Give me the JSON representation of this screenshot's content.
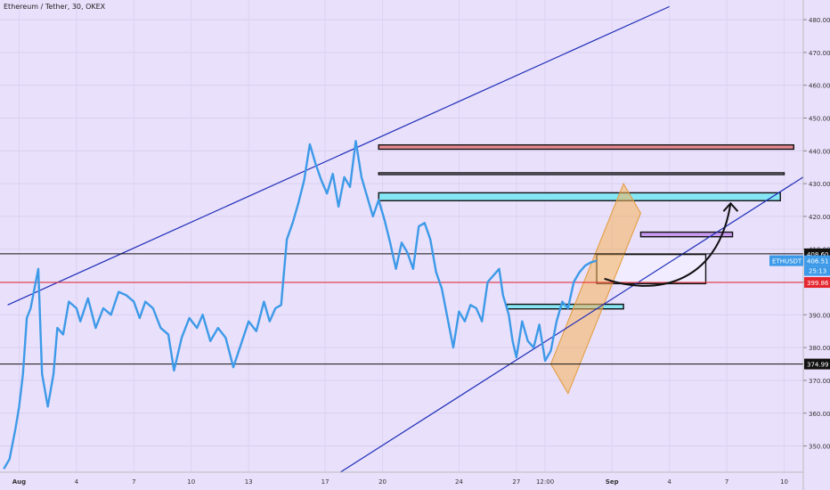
{
  "title": "Ethereum / Tether, 30, OKEX",
  "colors": {
    "bg": "#e9e0fb",
    "price_line": "#3d9ae8",
    "channel": "#1f2fb8",
    "red_line": "#e5262f",
    "black_line": "#111111"
  },
  "chart_data": {
    "type": "line",
    "ylim": [
      342,
      486
    ],
    "y_ticks": [
      350,
      360,
      370,
      380,
      390,
      400,
      410,
      420,
      430,
      440,
      450,
      460,
      470,
      480
    ],
    "y_tick_labels": [
      "350.00",
      "360.00",
      "370.00",
      "380.00",
      "390.00",
      "400.00",
      "410.00",
      "420.00",
      "430.00",
      "440.00",
      "450.00",
      "460.00",
      "470.00",
      "480.00"
    ],
    "x_ticks": [
      {
        "label": "Aug",
        "t": 0
      },
      {
        "label": "4",
        "t": 3
      },
      {
        "label": "7",
        "t": 6
      },
      {
        "label": "10",
        "t": 9
      },
      {
        "label": "13",
        "t": 12
      },
      {
        "label": "17",
        "t": 16
      },
      {
        "label": "20",
        "t": 19
      },
      {
        "label": "24",
        "t": 23
      },
      {
        "label": "27",
        "t": 26
      },
      {
        "label": "12:00",
        "t": 27.5
      },
      {
        "label": "Sep",
        "t": 31
      },
      {
        "label": "4",
        "t": 34
      },
      {
        "label": "7",
        "t": 37
      },
      {
        "label": "10",
        "t": 40
      }
    ],
    "xlim": [
      -1,
      41
    ],
    "series": [
      {
        "name": "",
        "values": [
          [
            -0.8,
            343
          ],
          [
            -0.5,
            346
          ],
          [
            -0.2,
            355
          ],
          [
            0,
            362
          ],
          [
            0.2,
            372
          ],
          [
            0.4,
            389
          ],
          [
            0.6,
            392
          ],
          [
            0.8,
            398
          ],
          [
            1,
            404
          ],
          [
            1.2,
            372
          ],
          [
            1.5,
            362
          ],
          [
            1.8,
            372
          ],
          [
            2,
            386
          ],
          [
            2.3,
            384
          ],
          [
            2.6,
            394
          ],
          [
            3,
            392
          ],
          [
            3.2,
            388
          ],
          [
            3.6,
            395
          ],
          [
            4,
            386
          ],
          [
            4.4,
            392
          ],
          [
            4.8,
            390
          ],
          [
            5.2,
            397
          ],
          [
            5.6,
            396
          ],
          [
            6,
            394
          ],
          [
            6.3,
            389
          ],
          [
            6.6,
            394
          ],
          [
            7,
            392
          ],
          [
            7.4,
            386
          ],
          [
            7.8,
            384
          ],
          [
            8.1,
            373
          ],
          [
            8.5,
            383
          ],
          [
            8.9,
            389
          ],
          [
            9.3,
            386
          ],
          [
            9.6,
            390
          ],
          [
            10,
            382
          ],
          [
            10.4,
            386
          ],
          [
            10.8,
            383
          ],
          [
            11.2,
            374
          ],
          [
            11.6,
            381
          ],
          [
            12,
            388
          ],
          [
            12.4,
            385
          ],
          [
            12.8,
            394
          ],
          [
            13.1,
            388
          ],
          [
            13.4,
            392
          ],
          [
            13.7,
            393
          ],
          [
            14,
            413
          ],
          [
            14.3,
            418
          ],
          [
            14.6,
            424
          ],
          [
            14.9,
            431
          ],
          [
            15.2,
            442
          ],
          [
            15.5,
            436
          ],
          [
            15.8,
            431
          ],
          [
            16.1,
            427
          ],
          [
            16.4,
            433
          ],
          [
            16.7,
            423
          ],
          [
            17,
            432
          ],
          [
            17.3,
            429
          ],
          [
            17.6,
            443
          ],
          [
            17.9,
            432
          ],
          [
            18.2,
            426
          ],
          [
            18.5,
            420
          ],
          [
            18.8,
            425
          ],
          [
            19.1,
            419
          ],
          [
            19.4,
            412
          ],
          [
            19.7,
            404
          ],
          [
            20,
            412
          ],
          [
            20.3,
            409
          ],
          [
            20.6,
            404
          ],
          [
            20.9,
            417
          ],
          [
            21.2,
            418
          ],
          [
            21.5,
            413
          ],
          [
            21.8,
            403
          ],
          [
            22.1,
            398
          ],
          [
            22.4,
            389
          ],
          [
            22.7,
            380
          ],
          [
            23,
            391
          ],
          [
            23.3,
            388
          ],
          [
            23.6,
            393
          ],
          [
            23.9,
            392
          ],
          [
            24.2,
            388
          ],
          [
            24.5,
            400
          ],
          [
            24.8,
            402
          ],
          [
            25.1,
            404
          ],
          [
            25.3,
            396
          ],
          [
            25.6,
            390
          ],
          [
            25.8,
            382
          ],
          [
            26,
            377
          ],
          [
            26.3,
            388
          ],
          [
            26.6,
            382
          ],
          [
            26.9,
            380
          ],
          [
            27.2,
            387
          ],
          [
            27.5,
            376
          ],
          [
            27.8,
            379
          ],
          [
            28.1,
            388
          ],
          [
            28.4,
            394
          ],
          [
            28.7,
            392
          ],
          [
            29,
            400
          ],
          [
            29.3,
            403
          ],
          [
            29.6,
            405
          ],
          [
            29.9,
            406
          ],
          [
            30.2,
            406.5
          ]
        ]
      }
    ],
    "h_lines": [
      {
        "y": 408.6,
        "label": "408.60",
        "color": "#111111"
      },
      {
        "y": 399.86,
        "label": "399.86",
        "color": "#e5262f"
      },
      {
        "y": 374.99,
        "label": "374.99",
        "color": "#111111"
      }
    ],
    "price_badge": {
      "label": "ETHUSDT",
      "value": "406.51",
      "countdown": "25:13"
    },
    "zones": [
      {
        "t0": 18.8,
        "t1": 40.5,
        "y0": 440.5,
        "y1": 441.8,
        "fill": "#e88a92"
      },
      {
        "t0": 18.8,
        "t1": 40,
        "y0": 432.8,
        "y1": 433.3,
        "fill": "#cfc6ee"
      },
      {
        "t0": 18.8,
        "t1": 39.8,
        "y0": 424.8,
        "y1": 427.2,
        "fill": "#86e6f5"
      },
      {
        "t0": 32.5,
        "t1": 37.3,
        "y0": 413.8,
        "y1": 415.2,
        "fill": "#c79af0"
      },
      {
        "t0": 30.2,
        "t1": 35.9,
        "y0": 399.5,
        "y1": 408.4,
        "fill": "#f1ecff"
      },
      {
        "t0": 25.5,
        "t1": 31.6,
        "y0": 391.8,
        "y1": 393.2,
        "fill": "#86e6f5"
      }
    ],
    "channel_upper": [
      [
        -0.6,
        393
      ],
      [
        34,
        484
      ]
    ],
    "channel_lower": [
      [
        16.8,
        342
      ],
      [
        41,
        432
      ]
    ],
    "parallel_channel": [
      [
        27.8,
        375
      ],
      [
        31.6,
        430
      ],
      [
        32.5,
        421
      ],
      [
        28.7,
        366
      ]
    ]
  }
}
